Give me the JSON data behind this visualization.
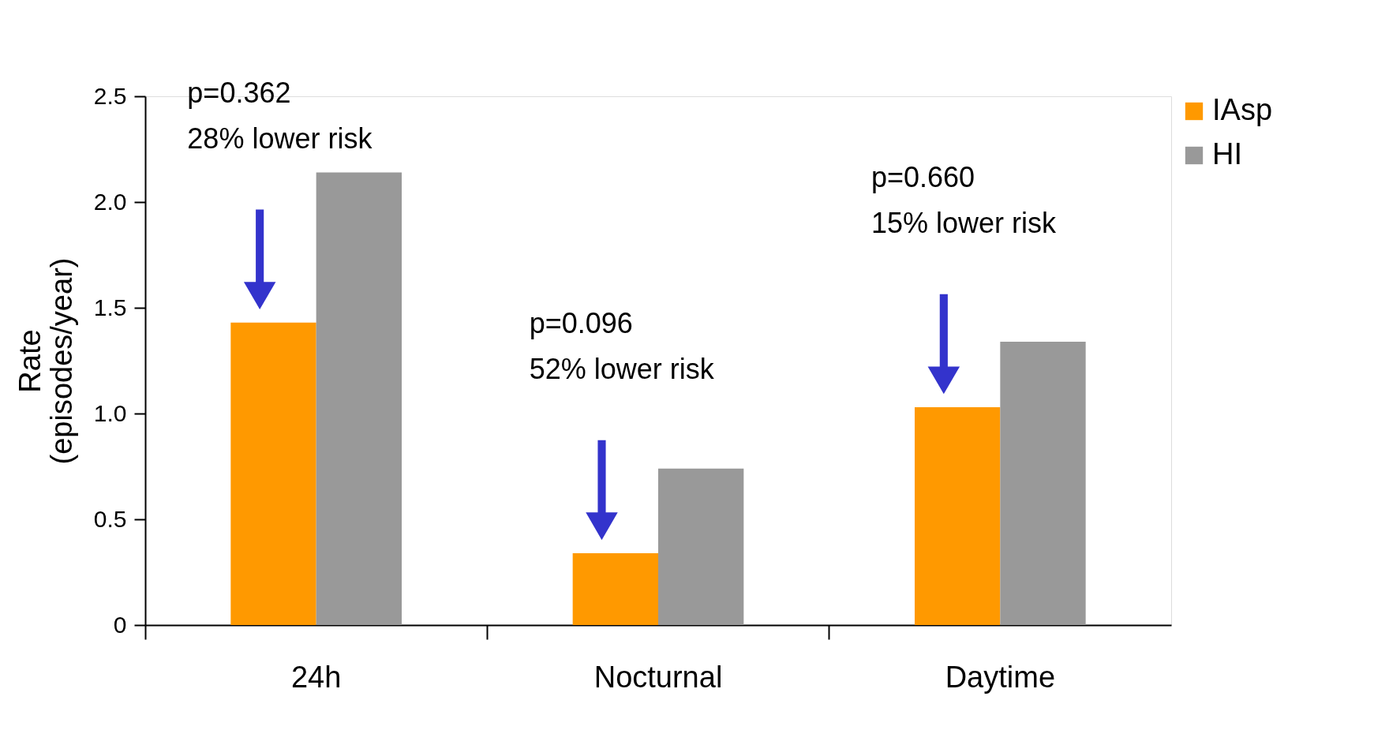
{
  "chart_data": {
    "type": "bar",
    "ylabel": "Rate (episodes/year)",
    "categories": [
      "24h",
      "Nocturnal",
      "Daytime"
    ],
    "series": [
      {
        "name": "IAsp",
        "color": "#ff9900",
        "values": [
          1.43,
          0.34,
          1.03
        ]
      },
      {
        "name": "HI",
        "color": "#999999",
        "values": [
          2.14,
          0.74,
          1.34
        ]
      }
    ],
    "ylim": [
      0,
      2.5
    ],
    "yticks": [
      0,
      0.5,
      {
        "value": 1,
        "label": "1.0"
      },
      1.5,
      {
        "value": 2,
        "label": "2.0"
      },
      2.5
    ],
    "annotations": [
      "p=0.362",
      "28% lower risk",
      "p=0.096",
      "52% lower risk",
      "p=0.660",
      "15% lower risk"
    ],
    "grid": false,
    "legend": "top right"
  }
}
